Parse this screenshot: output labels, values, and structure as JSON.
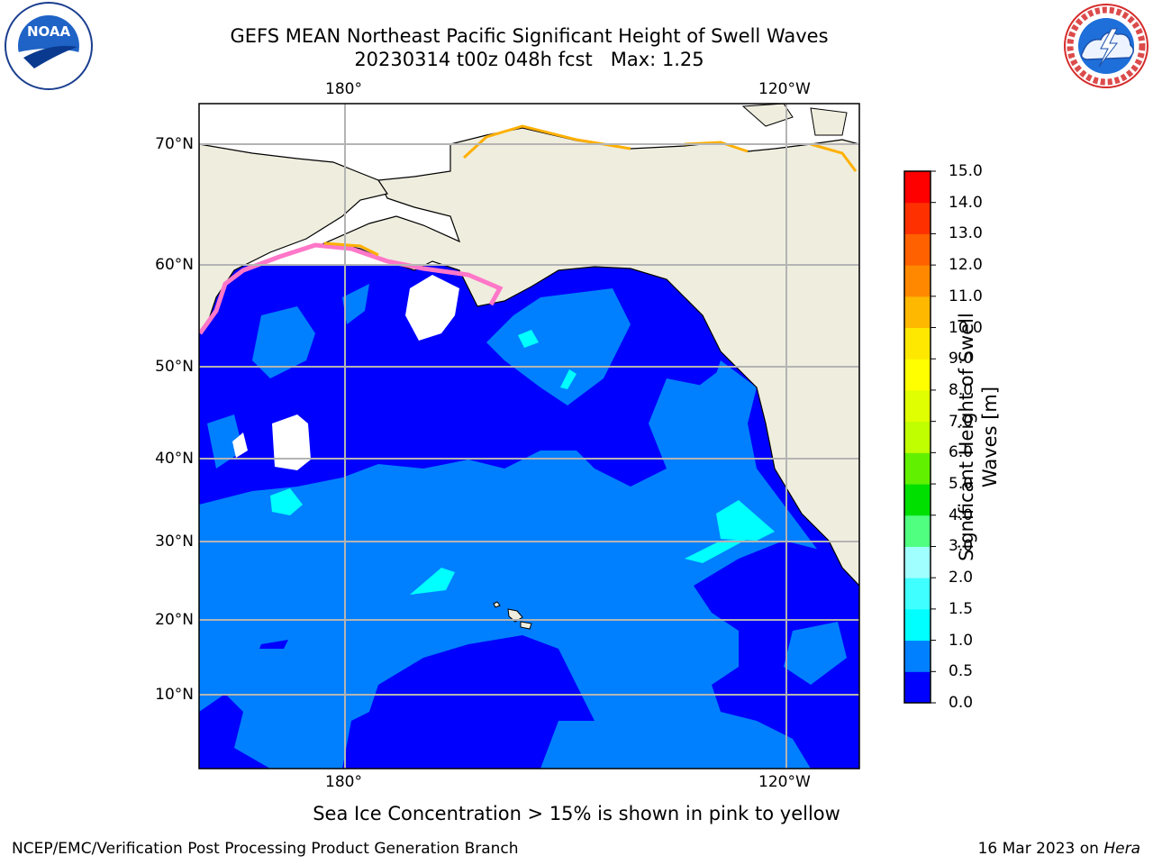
{
  "header": {
    "title_line1": "GEFS MEAN Northeast Pacific Significant Height of Swell Waves",
    "title_line2": "20230314 t00z 048h fcst   Max: 1.25"
  },
  "logos": {
    "left": {
      "name": "NOAA",
      "ring_text": "NATIONAL OCEANIC AND ATMOSPHERIC ADMINISTRATION · U.S. DEPARTMENT OF COMMERCE"
    },
    "right": {
      "name": "NATIONAL WEATHER SERVICE"
    }
  },
  "map": {
    "lon_labels": [
      "180°",
      "120°W"
    ],
    "lat_labels": [
      "70°N",
      "60°N",
      "50°N",
      "40°N",
      "30°N",
      "20°N",
      "10°N"
    ],
    "grid": true,
    "colors": {
      "land": "#efedde",
      "ice_missing": "#ffffff",
      "coast": "#000000",
      "grid": "#b4b4b4"
    }
  },
  "colorbar": {
    "title": "Significant Height of Swell Waves [m]",
    "ticks": [
      "15.0",
      "14.0",
      "13.0",
      "12.0",
      "11.0",
      "10.0",
      "9.0",
      "8.0",
      "7.0",
      "6.0",
      "5.0",
      "4.0",
      "3.0",
      "2.0",
      "1.5",
      "1.0",
      "0.5",
      "0.0"
    ],
    "bands": [
      {
        "from": 0.0,
        "to": 0.5,
        "color": "#0000ff"
      },
      {
        "from": 0.5,
        "to": 1.0,
        "color": "#0080ff"
      },
      {
        "from": 1.0,
        "to": 1.5,
        "color": "#00ffff"
      },
      {
        "from": 1.5,
        "to": 2.0,
        "color": "#40ffff"
      },
      {
        "from": 2.0,
        "to": 3.0,
        "color": "#a0ffff"
      },
      {
        "from": 3.0,
        "to": 4.0,
        "color": "#50ff80"
      },
      {
        "from": 4.0,
        "to": 5.0,
        "color": "#00e000"
      },
      {
        "from": 5.0,
        "to": 6.0,
        "color": "#60f000"
      },
      {
        "from": 6.0,
        "to": 7.0,
        "color": "#c0ff00"
      },
      {
        "from": 7.0,
        "to": 8.0,
        "color": "#e0ff00"
      },
      {
        "from": 8.0,
        "to": 9.0,
        "color": "#ffff00"
      },
      {
        "from": 9.0,
        "to": 10.0,
        "color": "#ffe800"
      },
      {
        "from": 10.0,
        "to": 11.0,
        "color": "#ffb800"
      },
      {
        "from": 11.0,
        "to": 12.0,
        "color": "#ff8800"
      },
      {
        "from": 12.0,
        "to": 13.0,
        "color": "#ff6000"
      },
      {
        "from": 13.0,
        "to": 14.0,
        "color": "#ff3000"
      },
      {
        "from": 14.0,
        "to": 15.0,
        "color": "#ff0000"
      }
    ]
  },
  "caption": "Sea Ice Concentration > 15% is shown in pink to yellow",
  "footer": {
    "left": "NCEP/EMC/Verification Post Processing Product Generation Branch",
    "right_prefix": "16 Mar 2023 on ",
    "right_machine": "Hera"
  }
}
